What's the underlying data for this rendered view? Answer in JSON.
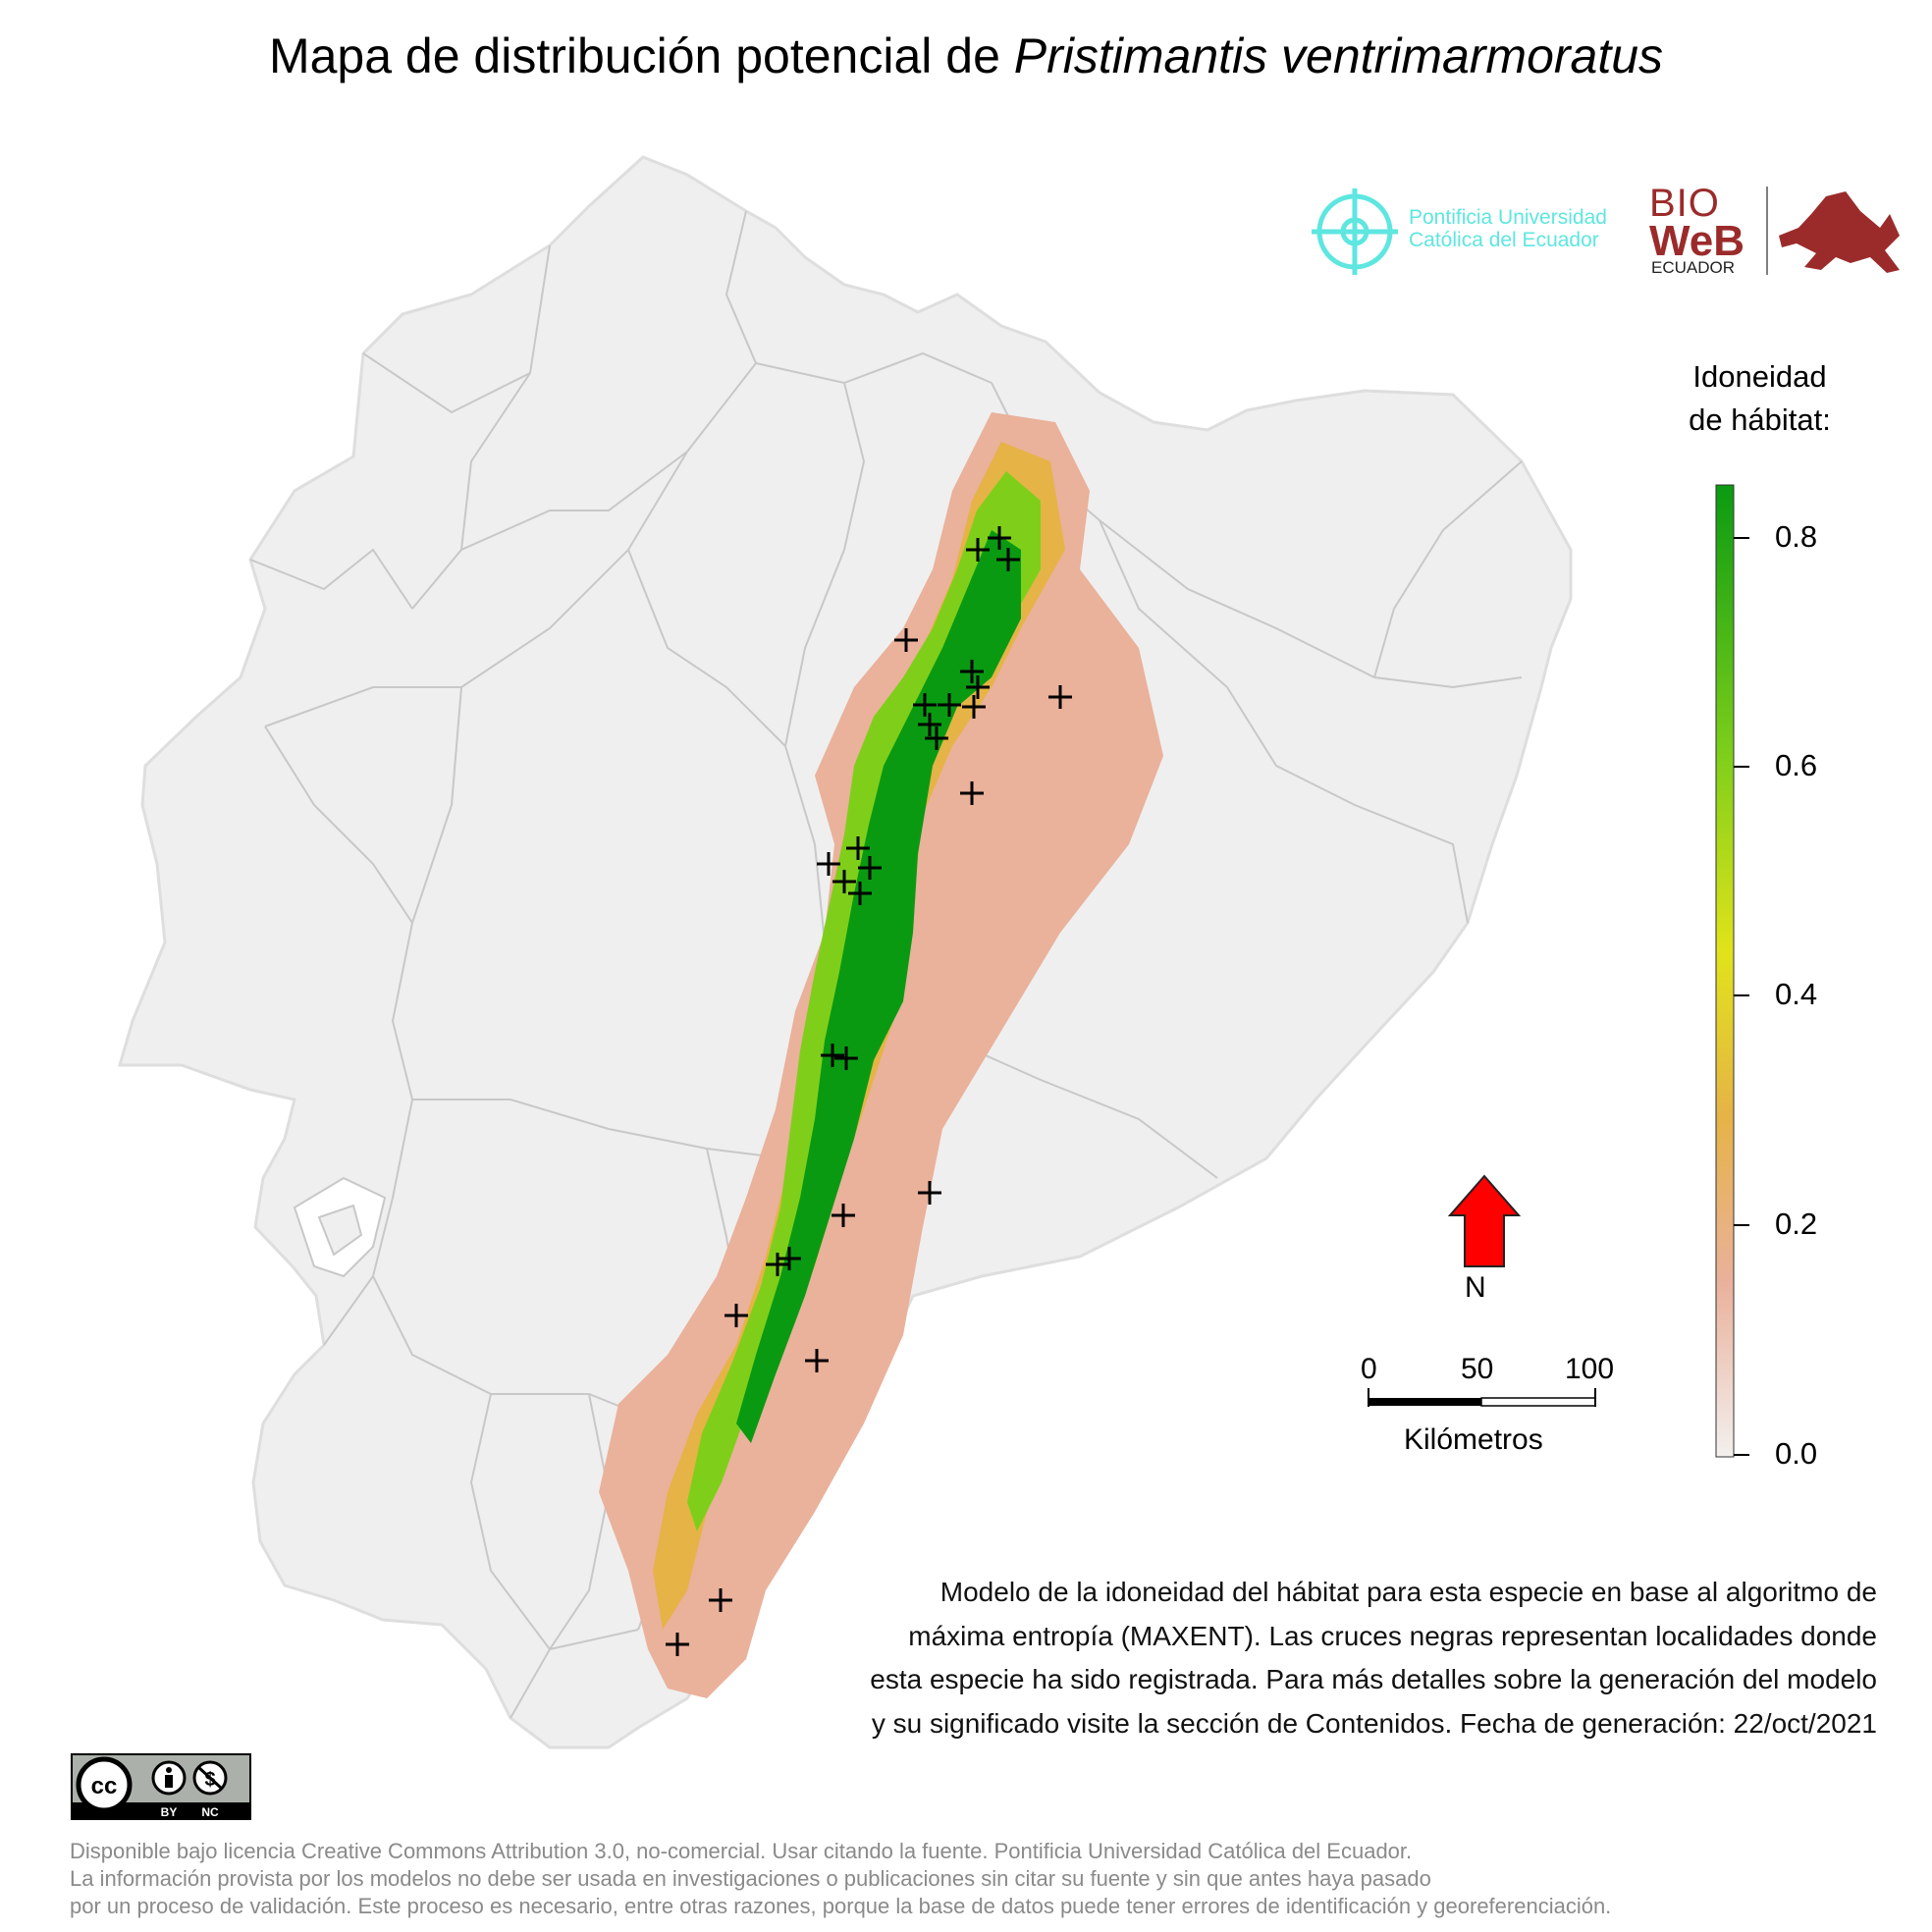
{
  "title_prefix": "Mapa de distribución potencial de ",
  "title_species": "Pristimantis ventrimarmoratus",
  "logos": {
    "puce_line1": "Pontificia Universidad",
    "puce_line2": "Católica del Ecuador",
    "bioweb_line1": "BIO",
    "bioweb_line2": "WeB",
    "bioweb_line3": "ECUADOR"
  },
  "legend": {
    "title_line1": "Idoneidad",
    "title_line2": "de hábitat:",
    "ticks": [
      "0.8",
      "0.6",
      "0.4",
      "0.2",
      "0.0"
    ],
    "min": 0.0,
    "max": 0.85,
    "colors": [
      "#f3f0ee",
      "#eab19b",
      "#e6b347",
      "#e1e31a",
      "#7fcf1a",
      "#0a9a12"
    ]
  },
  "north_label": "N",
  "scale": {
    "labels": [
      "0",
      "50",
      "100"
    ],
    "unit": "Kilómetros"
  },
  "description_lines": [
    "Modelo de la idoneidad del hábitat para esta especie en base al algoritmo de",
    "máxima entropía (MAXENT). Las cruces negras representan localidades donde",
    "esta especie ha sido registrada. Para más detalles sobre la generación del modelo",
    "y su significado visite la sección de Contenidos. Fecha de generación: 22/oct/2021"
  ],
  "license": {
    "by": "BY",
    "nc": "NC",
    "cc": "cc"
  },
  "footer_lines": [
    "Disponible bajo licencia Creative Commons Attribution 3.0, no-comercial. Usar citando la fuente. Pontificia Universidad Católica del Ecuador.",
    "La información provista por los modelos no debe ser usada en investigaciones o publicaciones sin citar su fuente y sin que antes haya pasado",
    "por un proceso de validación. Este proceso es necesario, entre otras razones, porque la base de datos puede tener errores de identificación y georeferenciación."
  ],
  "colors": {
    "land": "#efefef",
    "border": "#c8c8c8",
    "north_arrow": "#ff0000",
    "low_suitability": "#eab19b",
    "mid_suitability": "#e6b347",
    "high_suitability": "#0a9a12"
  }
}
